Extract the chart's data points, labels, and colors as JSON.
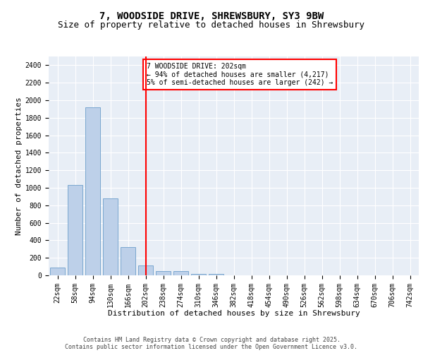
{
  "title1": "7, WOODSIDE DRIVE, SHREWSBURY, SY3 9BW",
  "title2": "Size of property relative to detached houses in Shrewsbury",
  "xlabel": "Distribution of detached houses by size in Shrewsbury",
  "ylabel": "Number of detached properties",
  "categories": [
    "22sqm",
    "58sqm",
    "94sqm",
    "130sqm",
    "166sqm",
    "202sqm",
    "238sqm",
    "274sqm",
    "310sqm",
    "346sqm",
    "382sqm",
    "418sqm",
    "454sqm",
    "490sqm",
    "526sqm",
    "562sqm",
    "598sqm",
    "634sqm",
    "670sqm",
    "706sqm",
    "742sqm"
  ],
  "values": [
    90,
    1030,
    1920,
    880,
    320,
    110,
    50,
    45,
    20,
    20,
    0,
    0,
    0,
    0,
    0,
    0,
    0,
    0,
    0,
    0,
    0
  ],
  "bar_color": "#bdd0e9",
  "bar_edge_color": "#7aa7d0",
  "vline_x_index": 5,
  "vline_color": "red",
  "annotation_line1": "7 WOODSIDE DRIVE: 202sqm",
  "annotation_line2": "← 94% of detached houses are smaller (4,217)",
  "annotation_line3": "5% of semi-detached houses are larger (242) →",
  "annotation_box_color": "white",
  "annotation_box_edge_color": "red",
  "ylim": [
    0,
    2500
  ],
  "yticks": [
    0,
    200,
    400,
    600,
    800,
    1000,
    1200,
    1400,
    1600,
    1800,
    2000,
    2200,
    2400
  ],
  "background_color": "#e8eef6",
  "grid_color": "white",
  "footer1": "Contains HM Land Registry data © Crown copyright and database right 2025.",
  "footer2": "Contains public sector information licensed under the Open Government Licence v3.0.",
  "title1_fontsize": 10,
  "title2_fontsize": 9,
  "xlabel_fontsize": 8,
  "ylabel_fontsize": 8,
  "tick_fontsize": 7,
  "annotation_fontsize": 7,
  "footer_fontsize": 6
}
